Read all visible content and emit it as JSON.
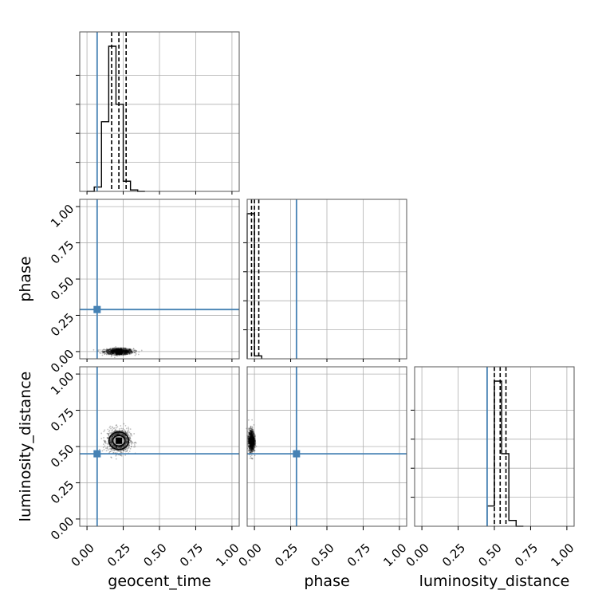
{
  "colors": {
    "truth": "#4682b4",
    "hist": "#000000",
    "grid": "#b0b0b0",
    "axes": "#000000"
  },
  "chart_data": {
    "type": "corner",
    "parameters": [
      "geocent_time",
      "phase",
      "luminosity_distance"
    ],
    "tick_labels": [
      "0.00",
      "0.25",
      "0.50",
      "0.75",
      "1.00"
    ],
    "range": [
      -0.05,
      1.05
    ],
    "grid": true,
    "truths": {
      "geocent_time": 0.07,
      "phase": 0.29,
      "luminosity_distance": 0.45
    },
    "histograms": [
      {
        "param": "geocent_time",
        "bin_edges": [
          0.0,
          0.05,
          0.1,
          0.15,
          0.2,
          0.25,
          0.3,
          0.35,
          0.4
        ],
        "counts": [
          0,
          3,
          48,
          100,
          60,
          7,
          1,
          0
        ],
        "quantiles": [
          0.17,
          0.22,
          0.27
        ],
        "y_max": 100
      },
      {
        "param": "phase",
        "bin_edges": [
          -0.05,
          0.0,
          0.05
        ],
        "counts": [
          100,
          2
        ],
        "quantiles": [
          -0.02,
          0.0,
          0.03
        ],
        "y_max": 100
      },
      {
        "param": "luminosity_distance",
        "bin_edges": [
          0.45,
          0.5,
          0.55,
          0.6,
          0.65,
          0.7
        ],
        "counts": [
          14,
          100,
          50,
          4,
          0
        ],
        "quantiles": [
          0.5,
          0.54,
          0.58
        ],
        "y_max": 100
      }
    ],
    "scatter_panels": [
      {
        "x": "geocent_time",
        "y": "phase",
        "center": [
          0.22,
          0.0
        ],
        "spread": [
          0.05,
          0.01
        ],
        "contours": false
      },
      {
        "x": "geocent_time",
        "y": "luminosity_distance",
        "center": [
          0.22,
          0.54
        ],
        "spread": [
          0.04,
          0.04
        ],
        "contours": true
      },
      {
        "x": "phase",
        "y": "luminosity_distance",
        "center": [
          -0.02,
          0.54
        ],
        "spread": [
          0.01,
          0.04
        ],
        "contours": false
      }
    ]
  }
}
